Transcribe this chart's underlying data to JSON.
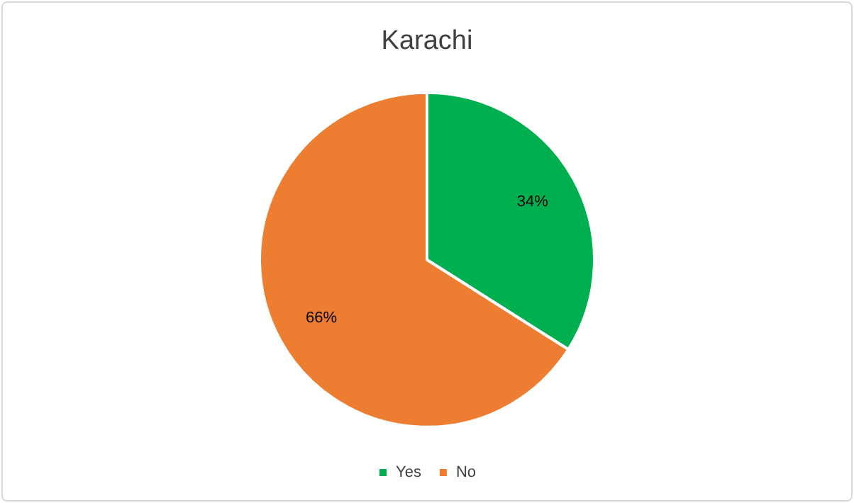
{
  "chart_data": {
    "type": "pie",
    "title": "Karachi",
    "categories": [
      "Yes",
      "No"
    ],
    "values": [
      34,
      66
    ],
    "colors": [
      "#00b050",
      "#ed7d31"
    ],
    "value_labels": [
      "34%",
      "66%"
    ],
    "legend": "bottom"
  }
}
